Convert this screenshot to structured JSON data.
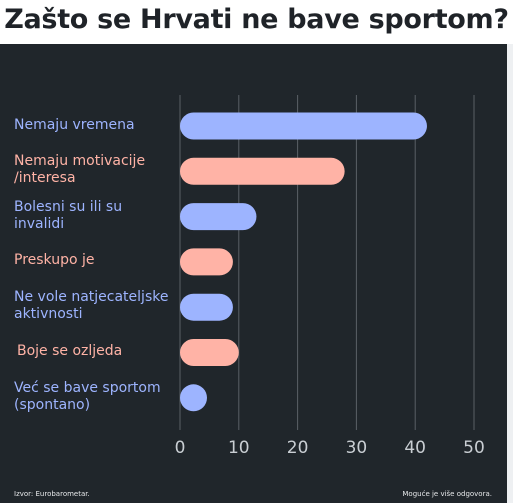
{
  "colors": {
    "background": "#20262b",
    "blue": "#9db4ff",
    "salmon": "#ffb3a6",
    "gridline": "#5a6066",
    "tick_text": "#c9ced3"
  },
  "chart_data": {
    "type": "bar",
    "orientation": "horizontal",
    "title": "Zašto se Hrvati ne bave sportom?",
    "categories": [
      "Nemaju vremena",
      "Nemaju motivacije /interesa",
      "Bolesni su ili su invalidi",
      "Preskupo je",
      "Ne vole natjecateljske aktivnosti",
      "Boje se ozljeda",
      "Već se bave sportom (spontano)"
    ],
    "category_lines": [
      [
        "Nemaju vremena"
      ],
      [
        "Nemaju motivacije",
        "/interesa"
      ],
      [
        "Bolesni su ili su",
        "invalidi"
      ],
      [
        "Preskupo je"
      ],
      [
        "Ne vole natjecateljske",
        "aktivnosti"
      ],
      [
        "Boje se ozljeda"
      ],
      [
        "Već se bave sportom",
        "(spontano)"
      ]
    ],
    "values": [
      42,
      28,
      13,
      9,
      9,
      10,
      4
    ],
    "bar_colors": [
      "blue",
      "salmon",
      "blue",
      "salmon",
      "blue",
      "salmon",
      "blue"
    ],
    "xlim": [
      0,
      50
    ],
    "xticks": [
      0,
      10,
      20,
      30,
      40,
      50
    ],
    "grid": true
  },
  "footer": {
    "source": "Izvor: Eurobarometar.",
    "note": "Moguće je više odgovora."
  }
}
